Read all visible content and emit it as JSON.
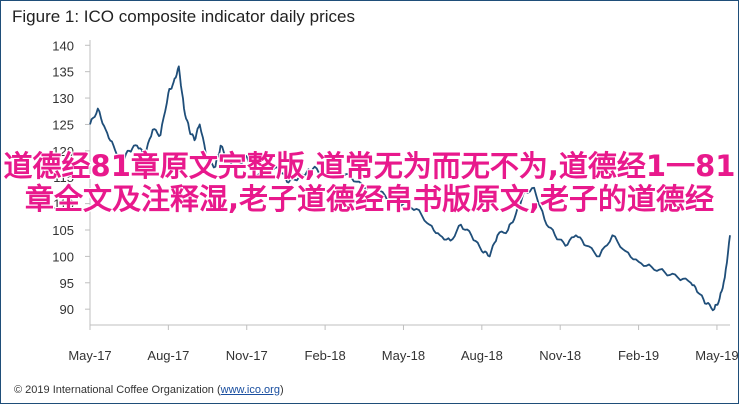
{
  "title": "Figure 1: ICO composite indicator daily prices",
  "copyright": {
    "prefix": "© 2019 International Coffee Organization (",
    "link": "www.ico.org",
    "suffix": ")"
  },
  "overlay_text": "道德经81章原文完整版,道常无为而无不为,道德经1一81章全文及注释湿,老子道德经帛书版原文,老子的道德经",
  "colors": {
    "line": "#1f4e79",
    "axis": "#bfbfbf",
    "overlay": "#e8198c",
    "frame": "#1f4e79"
  },
  "chart_data": {
    "type": "line",
    "title": "Figure 1: ICO composite indicator daily prices",
    "xlabel": "",
    "ylabel": "",
    "x_ticks": [
      "May-17",
      "Aug-17",
      "Nov-17",
      "Feb-18",
      "May-18",
      "Aug-18",
      "Nov-18",
      "Feb-19",
      "May-19"
    ],
    "y_ticks": [
      90,
      95,
      100,
      105,
      110,
      115,
      120,
      125,
      130,
      135,
      140
    ],
    "ylim": [
      87,
      141
    ],
    "xlim": [
      0,
      24.5
    ],
    "x_unit": "months from May-17",
    "grid": false,
    "series": [
      {
        "name": "",
        "x": [
          0,
          0.3,
          0.6,
          0.9,
          1.2,
          1.5,
          1.8,
          2.1,
          2.4,
          2.7,
          3.0,
          3.2,
          3.4,
          3.6,
          3.8,
          4.0,
          4.2,
          4.5,
          4.8,
          5.0,
          5.3,
          5.6,
          6.0,
          6.3,
          6.6,
          7.0,
          7.3,
          7.6,
          8.0,
          8.3,
          8.6,
          9.0,
          9.5,
          10.0,
          10.5,
          11.0,
          11.5,
          12.0,
          12.5,
          13.0,
          13.4,
          13.8,
          14.2,
          14.6,
          15.0,
          15.3,
          15.6,
          16.0,
          16.3,
          16.6,
          17.0,
          17.4,
          17.8,
          18.2,
          18.6,
          19.0,
          19.5,
          20.0,
          20.5,
          21.0,
          21.5,
          22.0,
          22.5,
          23.0,
          23.3,
          23.6,
          23.9,
          24.1,
          24.3,
          24.5
        ],
        "values": [
          125,
          128,
          124,
          121,
          118,
          120,
          121,
          119,
          124,
          123,
          131,
          133,
          136,
          128,
          124,
          122,
          125,
          118,
          117,
          121,
          118,
          117,
          119,
          116,
          115,
          117,
          116,
          114,
          115,
          116,
          117,
          115,
          116,
          115,
          113,
          113,
          110,
          110,
          109,
          106,
          104,
          103,
          106,
          104,
          101,
          100,
          104,
          105,
          108,
          112,
          113,
          107,
          104,
          102,
          104,
          102,
          100,
          104,
          101,
          99,
          98,
          97,
          96,
          95,
          93,
          91,
          90,
          92,
          96,
          104
        ]
      }
    ]
  }
}
